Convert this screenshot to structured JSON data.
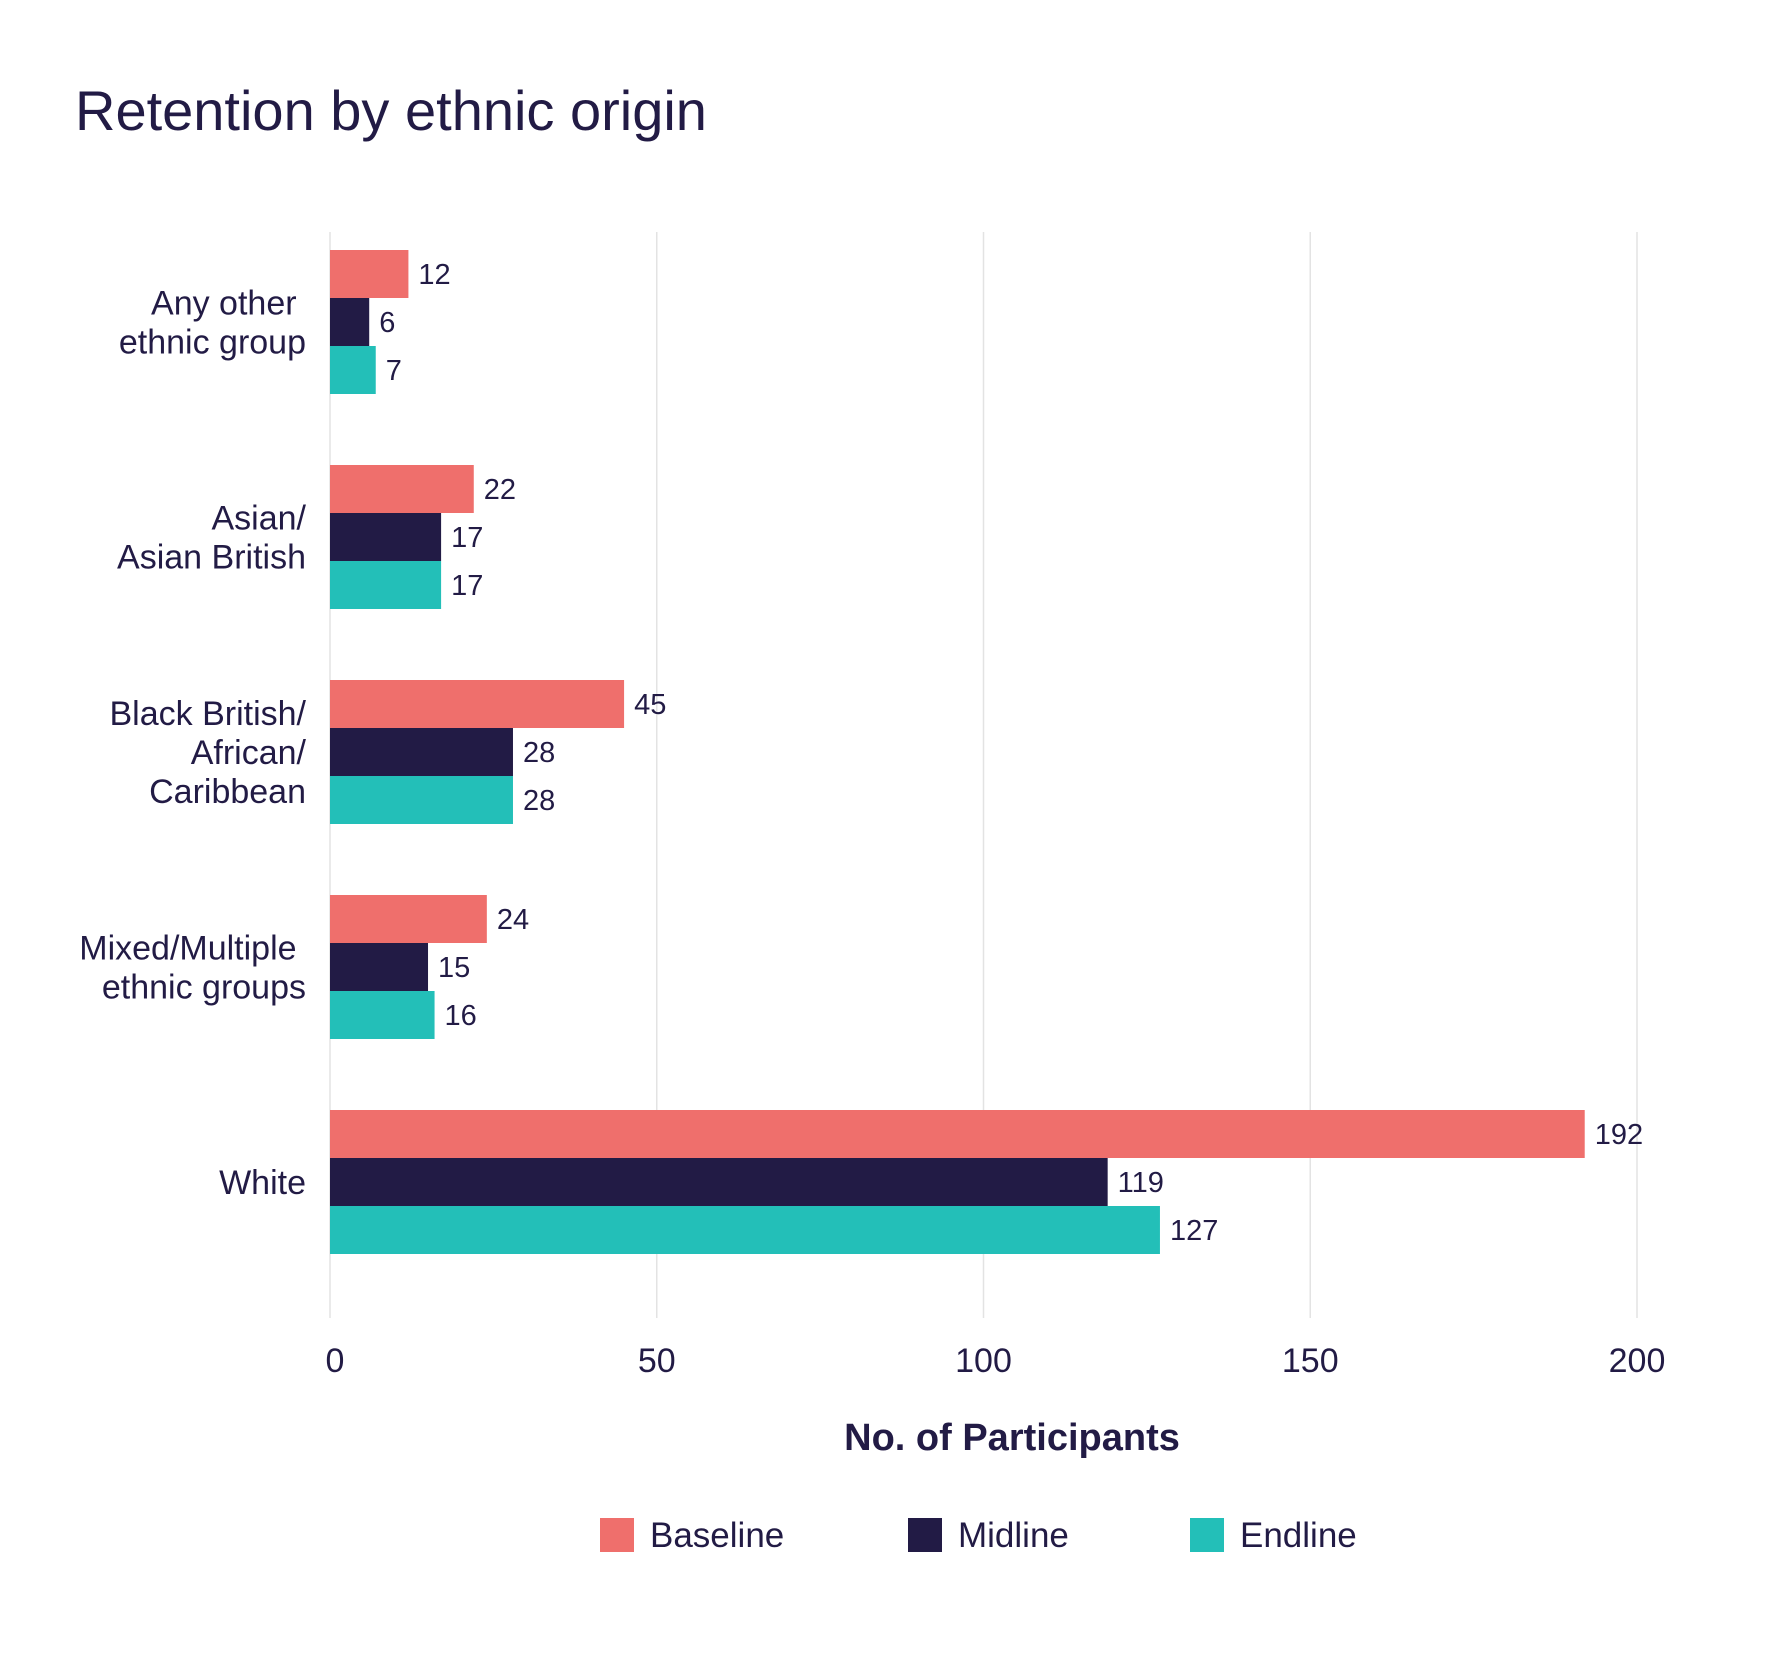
{
  "chart_data": {
    "type": "bar",
    "orientation": "horizontal",
    "title": "Retention by ethnic origin",
    "xlabel": "No. of Participants",
    "ylabel": "",
    "xlim": [
      0,
      200
    ],
    "xticks": [
      0,
      50,
      100,
      150,
      200
    ],
    "grid": true,
    "legend_position": "bottom",
    "categories": [
      [
        "Any other ",
        "ethnic group"
      ],
      [
        "Asian/",
        "Asian British"
      ],
      [
        "Black British/",
        "African/",
        "Caribbean"
      ],
      [
        "Mixed/Multiple ",
        "ethnic groups"
      ],
      [
        "White"
      ]
    ],
    "series": [
      {
        "name": "Baseline",
        "color": "#ef6f6c",
        "values": [
          12,
          22,
          45,
          24,
          192
        ]
      },
      {
        "name": "Midline",
        "color": "#221b45",
        "values": [
          6,
          17,
          28,
          15,
          119
        ]
      },
      {
        "name": "Endline",
        "color": "#23bfb8",
        "values": [
          7,
          17,
          28,
          16,
          127
        ]
      }
    ]
  }
}
